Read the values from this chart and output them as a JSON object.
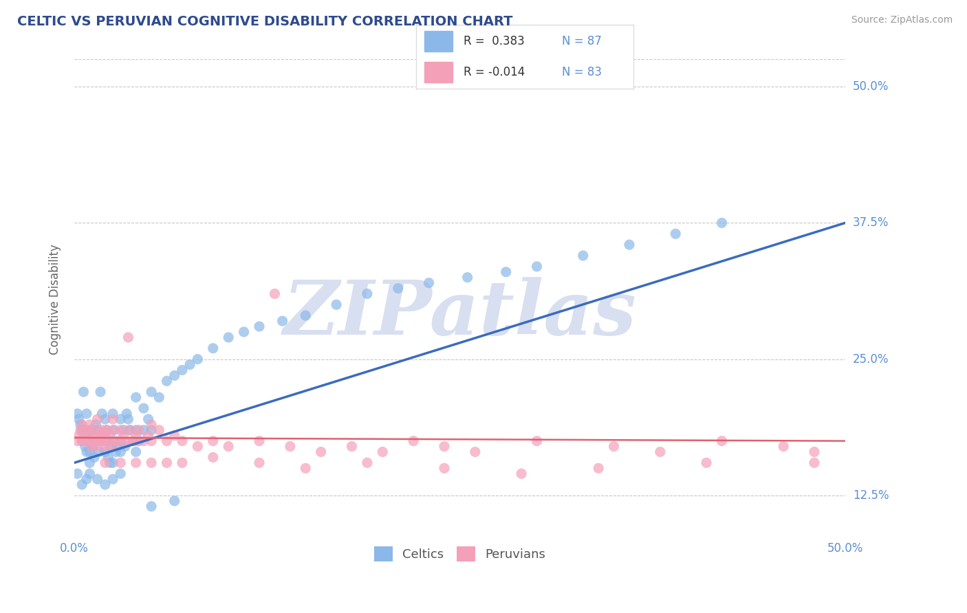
{
  "title": "CELTIC VS PERUVIAN COGNITIVE DISABILITY CORRELATION CHART",
  "source": "Source: ZipAtlas.com",
  "ylabel": "Cognitive Disability",
  "xlim": [
    0.0,
    0.5
  ],
  "ylim": [
    0.085,
    0.525
  ],
  "xticks": [
    0.0,
    0.125,
    0.25,
    0.375,
    0.5
  ],
  "xtick_labels": [
    "0.0%",
    "",
    "",
    "",
    "50.0%"
  ],
  "ytick_labels": [
    "12.5%",
    "25.0%",
    "37.5%",
    "50.0%"
  ],
  "yticks": [
    0.125,
    0.25,
    0.375,
    0.5
  ],
  "watermark": "ZIPatlas",
  "title_color": "#2E4B8F",
  "axis_color": "#5B8FD4",
  "scatter_blue_color": "#8BB8E8",
  "scatter_pink_color": "#F4A0B8",
  "line_blue_color": "#3A6BBF",
  "line_pink_color": "#E06070",
  "grid_color": "#C8C8C8",
  "watermark_color": "#D8DFF0",
  "celtics_label": "Celtics",
  "peruvians_label": "Peruvians",
  "blue_line_x": [
    0.0,
    0.5
  ],
  "blue_line_y": [
    0.155,
    0.375
  ],
  "pink_line_x": [
    0.0,
    0.5
  ],
  "pink_line_y": [
    0.178,
    0.175
  ],
  "celtics_scatter": [
    [
      0.002,
      0.2
    ],
    [
      0.003,
      0.195
    ],
    [
      0.004,
      0.19
    ],
    [
      0.005,
      0.185
    ],
    [
      0.005,
      0.175
    ],
    [
      0.006,
      0.22
    ],
    [
      0.007,
      0.17
    ],
    [
      0.008,
      0.165
    ],
    [
      0.008,
      0.2
    ],
    [
      0.009,
      0.18
    ],
    [
      0.01,
      0.175
    ],
    [
      0.01,
      0.165
    ],
    [
      0.01,
      0.155
    ],
    [
      0.011,
      0.185
    ],
    [
      0.012,
      0.17
    ],
    [
      0.013,
      0.16
    ],
    [
      0.014,
      0.19
    ],
    [
      0.015,
      0.185
    ],
    [
      0.015,
      0.175
    ],
    [
      0.016,
      0.165
    ],
    [
      0.017,
      0.22
    ],
    [
      0.018,
      0.2
    ],
    [
      0.019,
      0.18
    ],
    [
      0.02,
      0.195
    ],
    [
      0.02,
      0.175
    ],
    [
      0.02,
      0.165
    ],
    [
      0.021,
      0.185
    ],
    [
      0.022,
      0.16
    ],
    [
      0.023,
      0.155
    ],
    [
      0.024,
      0.17
    ],
    [
      0.025,
      0.2
    ],
    [
      0.025,
      0.175
    ],
    [
      0.025,
      0.155
    ],
    [
      0.026,
      0.185
    ],
    [
      0.027,
      0.165
    ],
    [
      0.028,
      0.17
    ],
    [
      0.03,
      0.195
    ],
    [
      0.03,
      0.175
    ],
    [
      0.03,
      0.165
    ],
    [
      0.032,
      0.185
    ],
    [
      0.033,
      0.17
    ],
    [
      0.034,
      0.2
    ],
    [
      0.035,
      0.195
    ],
    [
      0.036,
      0.185
    ],
    [
      0.038,
      0.175
    ],
    [
      0.04,
      0.215
    ],
    [
      0.04,
      0.185
    ],
    [
      0.04,
      0.165
    ],
    [
      0.042,
      0.175
    ],
    [
      0.045,
      0.205
    ],
    [
      0.045,
      0.185
    ],
    [
      0.048,
      0.195
    ],
    [
      0.05,
      0.22
    ],
    [
      0.05,
      0.185
    ],
    [
      0.055,
      0.215
    ],
    [
      0.06,
      0.23
    ],
    [
      0.065,
      0.235
    ],
    [
      0.07,
      0.24
    ],
    [
      0.075,
      0.245
    ],
    [
      0.08,
      0.25
    ],
    [
      0.09,
      0.26
    ],
    [
      0.1,
      0.27
    ],
    [
      0.11,
      0.275
    ],
    [
      0.12,
      0.28
    ],
    [
      0.135,
      0.285
    ],
    [
      0.15,
      0.29
    ],
    [
      0.17,
      0.3
    ],
    [
      0.19,
      0.31
    ],
    [
      0.21,
      0.315
    ],
    [
      0.23,
      0.32
    ],
    [
      0.255,
      0.325
    ],
    [
      0.28,
      0.33
    ],
    [
      0.3,
      0.335
    ],
    [
      0.33,
      0.345
    ],
    [
      0.36,
      0.355
    ],
    [
      0.39,
      0.365
    ],
    [
      0.42,
      0.375
    ],
    [
      0.002,
      0.145
    ],
    [
      0.005,
      0.135
    ],
    [
      0.008,
      0.14
    ],
    [
      0.01,
      0.145
    ],
    [
      0.015,
      0.14
    ],
    [
      0.02,
      0.135
    ],
    [
      0.025,
      0.14
    ],
    [
      0.03,
      0.145
    ],
    [
      0.05,
      0.115
    ],
    [
      0.065,
      0.12
    ]
  ],
  "peruvians_scatter": [
    [
      0.002,
      0.175
    ],
    [
      0.003,
      0.18
    ],
    [
      0.004,
      0.185
    ],
    [
      0.005,
      0.175
    ],
    [
      0.005,
      0.19
    ],
    [
      0.006,
      0.18
    ],
    [
      0.007,
      0.175
    ],
    [
      0.008,
      0.185
    ],
    [
      0.009,
      0.18
    ],
    [
      0.01,
      0.175
    ],
    [
      0.01,
      0.185
    ],
    [
      0.011,
      0.17
    ],
    [
      0.012,
      0.175
    ],
    [
      0.013,
      0.18
    ],
    [
      0.014,
      0.175
    ],
    [
      0.015,
      0.185
    ],
    [
      0.015,
      0.17
    ],
    [
      0.016,
      0.18
    ],
    [
      0.017,
      0.175
    ],
    [
      0.018,
      0.185
    ],
    [
      0.019,
      0.175
    ],
    [
      0.02,
      0.18
    ],
    [
      0.02,
      0.17
    ],
    [
      0.021,
      0.185
    ],
    [
      0.022,
      0.175
    ],
    [
      0.023,
      0.18
    ],
    [
      0.025,
      0.185
    ],
    [
      0.025,
      0.17
    ],
    [
      0.027,
      0.175
    ],
    [
      0.03,
      0.185
    ],
    [
      0.03,
      0.175
    ],
    [
      0.032,
      0.18
    ],
    [
      0.034,
      0.175
    ],
    [
      0.036,
      0.185
    ],
    [
      0.038,
      0.175
    ],
    [
      0.04,
      0.18
    ],
    [
      0.04,
      0.175
    ],
    [
      0.042,
      0.185
    ],
    [
      0.045,
      0.175
    ],
    [
      0.048,
      0.18
    ],
    [
      0.05,
      0.175
    ],
    [
      0.055,
      0.185
    ],
    [
      0.06,
      0.175
    ],
    [
      0.065,
      0.18
    ],
    [
      0.07,
      0.175
    ],
    [
      0.08,
      0.17
    ],
    [
      0.09,
      0.175
    ],
    [
      0.1,
      0.17
    ],
    [
      0.12,
      0.175
    ],
    [
      0.14,
      0.17
    ],
    [
      0.16,
      0.165
    ],
    [
      0.18,
      0.17
    ],
    [
      0.2,
      0.165
    ],
    [
      0.22,
      0.175
    ],
    [
      0.24,
      0.17
    ],
    [
      0.26,
      0.165
    ],
    [
      0.3,
      0.175
    ],
    [
      0.35,
      0.17
    ],
    [
      0.38,
      0.165
    ],
    [
      0.42,
      0.175
    ],
    [
      0.46,
      0.17
    ],
    [
      0.035,
      0.27
    ],
    [
      0.13,
      0.31
    ],
    [
      0.02,
      0.155
    ],
    [
      0.03,
      0.155
    ],
    [
      0.04,
      0.155
    ],
    [
      0.05,
      0.155
    ],
    [
      0.06,
      0.155
    ],
    [
      0.07,
      0.155
    ],
    [
      0.09,
      0.16
    ],
    [
      0.12,
      0.155
    ],
    [
      0.15,
      0.15
    ],
    [
      0.19,
      0.155
    ],
    [
      0.24,
      0.15
    ],
    [
      0.29,
      0.145
    ],
    [
      0.34,
      0.15
    ],
    [
      0.41,
      0.155
    ],
    [
      0.48,
      0.155
    ],
    [
      0.01,
      0.19
    ],
    [
      0.015,
      0.195
    ],
    [
      0.025,
      0.195
    ],
    [
      0.05,
      0.19
    ],
    [
      0.48,
      0.165
    ]
  ]
}
